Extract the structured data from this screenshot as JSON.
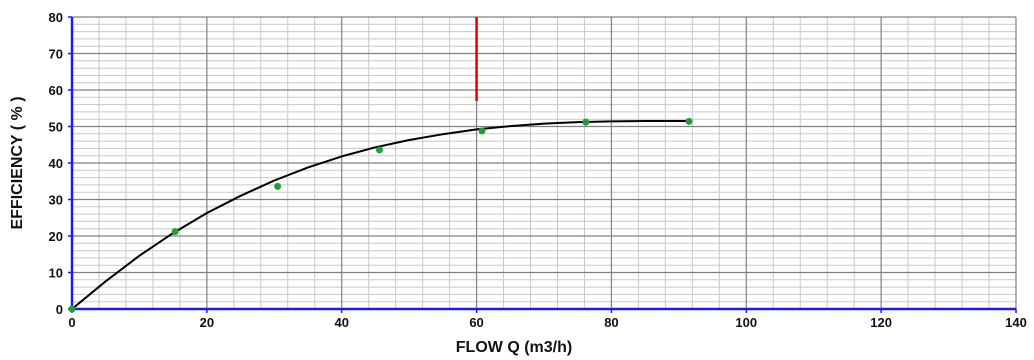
{
  "chart_data": {
    "type": "line",
    "title": "",
    "xlabel": "FLOW Q (m3/h)",
    "ylabel": "EFFICIENCY ( % )",
    "xlim": [
      0,
      140
    ],
    "ylim": [
      0,
      80
    ],
    "x_ticks": [
      0,
      20,
      40,
      60,
      80,
      100,
      120,
      140
    ],
    "y_ticks": [
      0,
      10,
      20,
      30,
      40,
      50,
      60,
      70,
      80
    ],
    "grid": true,
    "legend": "none",
    "colors": {
      "axis": "#1a1aff",
      "major_grid": "#808080",
      "minor_grid": "#c8c8c8",
      "curve": "#000000",
      "points": "#1f9e3a",
      "marker": "#e00000"
    },
    "series": [
      {
        "kind": "measured-points",
        "x": [
          0,
          15.3,
          30.5,
          45.6,
          60.8,
          76.2,
          91.5
        ],
        "y": [
          0,
          21.2,
          33.6,
          43.6,
          48.8,
          51.2,
          51.4
        ]
      },
      {
        "kind": "fit-curve",
        "x": [
          0,
          5,
          10,
          15,
          20,
          25,
          30,
          35,
          40,
          45,
          50,
          55,
          60,
          65,
          70,
          75,
          80,
          85,
          90,
          91.5
        ],
        "y": [
          0,
          7.6,
          14.6,
          20.8,
          26.3,
          31.0,
          35.2,
          38.8,
          41.8,
          44.3,
          46.3,
          47.9,
          49.2,
          50.1,
          50.8,
          51.2,
          51.4,
          51.5,
          51.5,
          51.5
        ]
      }
    ],
    "marker_line": {
      "x": 60,
      "y_from": 57,
      "y_to": 80
    }
  }
}
